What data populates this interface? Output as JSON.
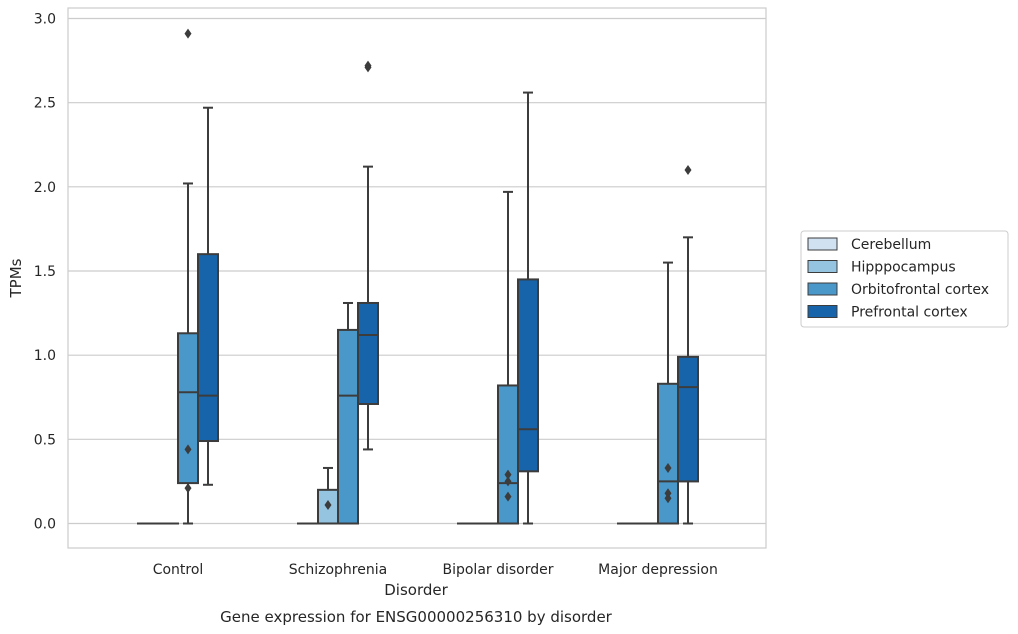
{
  "chart_data": {
    "type": "box",
    "title": "",
    "caption": "Gene expression for ENSG00000256310 by disorder",
    "xlabel": "Disorder",
    "ylabel": "TPMs",
    "ylim": [
      -0.14,
      3.07
    ],
    "yticks": [
      0.0,
      0.5,
      1.0,
      1.5,
      2.0,
      2.5,
      3.0
    ],
    "ytick_labels": [
      "0.0",
      "0.5",
      "1.0",
      "1.5",
      "2.0",
      "2.5",
      "3.0"
    ],
    "grid": "horizontal",
    "legend_position": "right",
    "categories": [
      "Control",
      "Schizophrenia",
      "Bipolar disorder",
      "Major depression"
    ],
    "series": [
      {
        "name": "Cerebellum",
        "color": "#d0e1f2",
        "boxes": [
          {
            "q1": 0.0,
            "median": 0.0,
            "q3": 0.0,
            "whisker_low": 0.0,
            "whisker_high": 0.0,
            "outliers": []
          },
          {
            "q1": 0.0,
            "median": 0.0,
            "q3": 0.0,
            "whisker_low": 0.0,
            "whisker_high": 0.0,
            "outliers": []
          },
          {
            "q1": 0.0,
            "median": 0.0,
            "q3": 0.0,
            "whisker_low": 0.0,
            "whisker_high": 0.0,
            "outliers": []
          },
          {
            "q1": 0.0,
            "median": 0.0,
            "q3": 0.0,
            "whisker_low": 0.0,
            "whisker_high": 0.0,
            "outliers": []
          }
        ]
      },
      {
        "name": "Hipppocampus",
        "color": "#94c4df",
        "boxes": [
          {
            "q1": 0.0,
            "median": 0.0,
            "q3": 0.0,
            "whisker_low": 0.0,
            "whisker_high": 0.0,
            "outliers": []
          },
          {
            "q1": 0.0,
            "median": 0.0,
            "q3": 0.2,
            "whisker_low": 0.0,
            "whisker_high": 0.33,
            "outliers": [
              0.11
            ]
          },
          {
            "q1": 0.0,
            "median": 0.0,
            "q3": 0.0,
            "whisker_low": 0.0,
            "whisker_high": 0.0,
            "outliers": []
          },
          {
            "q1": 0.0,
            "median": 0.0,
            "q3": 0.0,
            "whisker_low": 0.0,
            "whisker_high": 0.0,
            "outliers": []
          }
        ]
      },
      {
        "name": "Orbitofrontal cortex",
        "color": "#4a98c9",
        "boxes": [
          {
            "q1": 0.24,
            "median": 0.78,
            "q3": 1.13,
            "whisker_low": 0.0,
            "whisker_high": 2.02,
            "outliers": [
              0.44,
              0.21,
              2.91
            ]
          },
          {
            "q1": 0.0,
            "median": 0.76,
            "q3": 1.15,
            "whisker_low": 0.0,
            "whisker_high": 1.31,
            "outliers": []
          },
          {
            "q1": 0.0,
            "median": 0.24,
            "q3": 0.82,
            "whisker_low": 0.0,
            "whisker_high": 1.97,
            "outliers": [
              0.29,
              0.25,
              0.16
            ]
          },
          {
            "q1": 0.0,
            "median": 0.25,
            "q3": 0.83,
            "whisker_low": 0.0,
            "whisker_high": 1.55,
            "outliers": [
              0.33,
              0.18,
              0.15
            ]
          }
        ]
      },
      {
        "name": "Prefrontal cortex",
        "color": "#1764ab",
        "boxes": [
          {
            "q1": 0.49,
            "median": 0.76,
            "q3": 1.6,
            "whisker_low": 0.23,
            "whisker_high": 2.47,
            "outliers": []
          },
          {
            "q1": 0.71,
            "median": 1.12,
            "q3": 1.31,
            "whisker_low": 0.44,
            "whisker_high": 2.12,
            "outliers": [
              2.72,
              2.71
            ]
          },
          {
            "q1": 0.31,
            "median": 0.56,
            "q3": 1.45,
            "whisker_low": 0.0,
            "whisker_high": 2.56,
            "outliers": []
          },
          {
            "q1": 0.25,
            "median": 0.81,
            "q3": 0.99,
            "whisker_low": 0.0,
            "whisker_high": 1.7,
            "outliers": [
              2.1
            ]
          }
        ]
      }
    ]
  }
}
